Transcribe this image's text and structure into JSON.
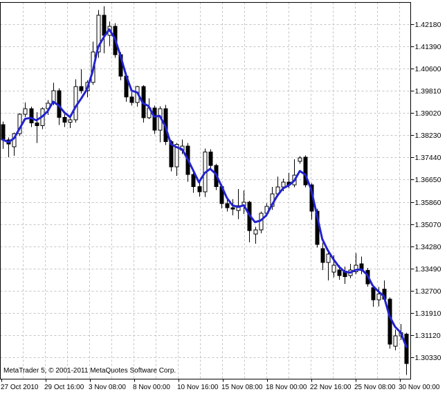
{
  "window": {
    "copyright": "MetaTrader 5, © 2001-2011 MetaQuotes Software Corp."
  },
  "chart_data": {
    "type": "candlestick",
    "title": "",
    "xlabel": "",
    "ylabel": "",
    "grid": "dashed",
    "legend": "none",
    "y_axis": {
      "side": "right",
      "ticks": [
        "1.42180",
        "1.41390",
        "1.40600",
        "1.39810",
        "1.39020",
        "1.38230",
        "1.37440",
        "1.36650",
        "1.35860",
        "1.35070",
        "1.34280",
        "1.33490",
        "1.32700",
        "1.31910",
        "1.31120",
        "1.30330"
      ],
      "tick_step": 0.0079,
      "range_top": 1.4294,
      "range_bottom": 1.2965
    },
    "x_axis": {
      "ticks": [
        "27 Oct 2010",
        "29 Oct 16:00",
        "3 Nov 08:00",
        "8 Nov 00:00",
        "10 Nov 16:00",
        "15 Nov 08:00",
        "18 Nov 00:00",
        "22 Nov 16:00",
        "25 Nov 08:00",
        "30 Nov 00:00"
      ]
    },
    "ma_indicator": {
      "type": "lwma",
      "period": 4,
      "color": "#2222CF",
      "width": 3
    },
    "colors": {
      "background": "#FFFFFF",
      "border": "#000000",
      "grid": "#C4C4C4",
      "bull_body": "#FFFFFF",
      "bear_body": "#000000",
      "outline": "#000000",
      "text": "#000000"
    },
    "candles_ohlc": [
      [
        1.3861,
        1.3872,
        1.3774,
        1.3807
      ],
      [
        1.3807,
        1.3815,
        1.3745,
        1.3792
      ],
      [
        1.3782,
        1.3832,
        1.375,
        1.3829
      ],
      [
        1.3829,
        1.3902,
        1.382,
        1.3898
      ],
      [
        1.3898,
        1.394,
        1.3888,
        1.3918
      ],
      [
        1.3918,
        1.3925,
        1.3852,
        1.3867
      ],
      [
        1.3867,
        1.3905,
        1.3795,
        1.3857
      ],
      [
        1.3857,
        1.3922,
        1.3845,
        1.3917
      ],
      [
        1.3917,
        1.3948,
        1.3895,
        1.3937
      ],
      [
        1.3937,
        1.401,
        1.393,
        1.3981
      ],
      [
        1.3981,
        1.399,
        1.386,
        1.3887
      ],
      [
        1.3887,
        1.3907,
        1.3852,
        1.387
      ],
      [
        1.387,
        1.3897,
        1.3848,
        1.3878
      ],
      [
        1.3878,
        1.4022,
        1.3868,
        1.3996
      ],
      [
        1.3996,
        1.4058,
        1.3972,
        1.3981
      ],
      [
        1.3981,
        1.4018,
        1.3958,
        1.4011
      ],
      [
        1.4011,
        1.4157,
        1.4003,
        1.412
      ],
      [
        1.412,
        1.4268,
        1.4098,
        1.425
      ],
      [
        1.425,
        1.4282,
        1.4115,
        1.4178
      ],
      [
        1.4178,
        1.4228,
        1.414,
        1.421
      ],
      [
        1.421,
        1.4222,
        1.4098,
        1.411
      ],
      [
        1.411,
        1.4118,
        1.4018,
        1.4033
      ],
      [
        1.4033,
        1.4046,
        1.3942,
        1.3959
      ],
      [
        1.3959,
        1.3976,
        1.3928,
        1.394
      ],
      [
        1.394,
        1.3999,
        1.3925,
        1.3996
      ],
      [
        1.3996,
        1.4001,
        1.3868,
        1.3886
      ],
      [
        1.3886,
        1.3955,
        1.388,
        1.392
      ],
      [
        1.392,
        1.3929,
        1.3828,
        1.3841
      ],
      [
        1.3841,
        1.3926,
        1.3798,
        1.3918
      ],
      [
        1.3918,
        1.3931,
        1.3788,
        1.38
      ],
      [
        1.38,
        1.3806,
        1.3694,
        1.371
      ],
      [
        1.371,
        1.3796,
        1.3678,
        1.379
      ],
      [
        1.377,
        1.3808,
        1.3756,
        1.3785
      ],
      [
        1.3785,
        1.3796,
        1.3658,
        1.3683
      ],
      [
        1.3683,
        1.3691,
        1.3618,
        1.364
      ],
      [
        1.364,
        1.3656,
        1.3604,
        1.3622
      ],
      [
        1.3622,
        1.3776,
        1.3603,
        1.3763
      ],
      [
        1.3763,
        1.3773,
        1.3698,
        1.3716
      ],
      [
        1.3716,
        1.3722,
        1.3628,
        1.364
      ],
      [
        1.364,
        1.3649,
        1.3563,
        1.358
      ],
      [
        1.358,
        1.3601,
        1.3552,
        1.3565
      ],
      [
        1.3565,
        1.3596,
        1.3538,
        1.356
      ],
      [
        1.3555,
        1.3632,
        1.3524,
        1.3572
      ],
      [
        1.3572,
        1.3627,
        1.3543,
        1.3585
      ],
      [
        1.3585,
        1.359,
        1.3442,
        1.3484
      ],
      [
        1.3472,
        1.3497,
        1.3437,
        1.3486
      ],
      [
        1.3486,
        1.3551,
        1.3474,
        1.3546
      ],
      [
        1.3546,
        1.3581,
        1.3534,
        1.357
      ],
      [
        1.357,
        1.3639,
        1.3558,
        1.3614
      ],
      [
        1.3614,
        1.3676,
        1.3604,
        1.3639
      ],
      [
        1.3639,
        1.3669,
        1.3624,
        1.3656
      ],
      [
        1.3656,
        1.3689,
        1.3634,
        1.3646
      ],
      [
        1.3646,
        1.3738,
        1.3638,
        1.3681
      ],
      [
        1.373,
        1.3749,
        1.3722,
        1.3742
      ],
      [
        1.3745,
        1.3751,
        1.3638,
        1.3647
      ],
      [
        1.3647,
        1.3652,
        1.3523,
        1.3553
      ],
      [
        1.3553,
        1.3561,
        1.3424,
        1.3435
      ],
      [
        1.342,
        1.3441,
        1.3344,
        1.337
      ],
      [
        1.337,
        1.3415,
        1.3307,
        1.34
      ],
      [
        1.3336,
        1.3396,
        1.3318,
        1.3361
      ],
      [
        1.3344,
        1.3361,
        1.3309,
        1.3324
      ],
      [
        1.334,
        1.3356,
        1.3294,
        1.332
      ],
      [
        1.3324,
        1.3366,
        1.3314,
        1.3344
      ],
      [
        1.3337,
        1.3404,
        1.3329,
        1.3361
      ],
      [
        1.3366,
        1.3391,
        1.3329,
        1.3342
      ],
      [
        1.3342,
        1.3351,
        1.3284,
        1.3294
      ],
      [
        1.328,
        1.3291,
        1.3213,
        1.3238
      ],
      [
        1.3238,
        1.3283,
        1.3214,
        1.3258
      ],
      [
        1.3276,
        1.3306,
        1.3234,
        1.324
      ],
      [
        1.324,
        1.3246,
        1.3064,
        1.308
      ],
      [
        1.3072,
        1.3131,
        1.3058,
        1.3109
      ],
      [
        1.3109,
        1.3151,
        1.3094,
        1.3121
      ],
      [
        1.3115,
        1.3121,
        1.297,
        1.3011
      ]
    ]
  }
}
